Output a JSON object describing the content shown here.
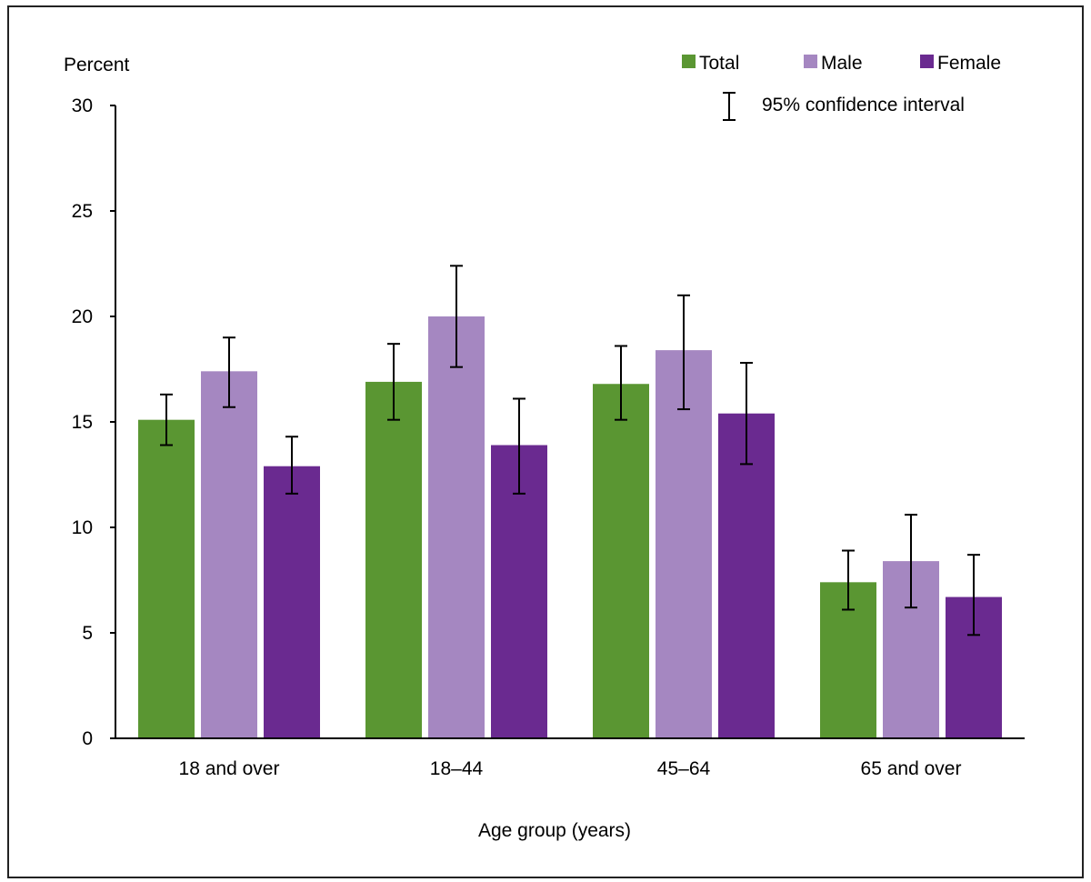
{
  "chart_data": {
    "type": "bar",
    "title": "",
    "ylabel": "Percent",
    "xlabel": "Age group (years)",
    "ylim": [
      0,
      30
    ],
    "yticks": [
      0,
      5,
      10,
      15,
      20,
      25,
      30
    ],
    "categories": [
      "18 and over",
      "18–44",
      "45–64",
      "65 and over"
    ],
    "series": [
      {
        "name": "Total",
        "color": "#5a9632",
        "values": [
          15.1,
          16.9,
          16.8,
          7.4
        ],
        "ci_low": [
          13.9,
          15.1,
          15.1,
          6.1
        ],
        "ci_high": [
          16.3,
          18.7,
          18.6,
          8.9
        ]
      },
      {
        "name": "Male",
        "color": "#a587c1",
        "values": [
          17.4,
          20.0,
          18.4,
          8.4
        ],
        "ci_low": [
          15.7,
          17.6,
          15.6,
          6.2
        ],
        "ci_high": [
          19.0,
          22.4,
          21.0,
          10.6
        ]
      },
      {
        "name": "Female",
        "color": "#6a2a90",
        "values": [
          12.9,
          13.9,
          15.4,
          6.7
        ],
        "ci_low": [
          11.6,
          11.6,
          13.0,
          4.9
        ],
        "ci_high": [
          14.3,
          16.1,
          17.8,
          8.7
        ]
      }
    ],
    "legend": {
      "position": "top-right",
      "ci_label": "95% confidence interval"
    },
    "grid": false
  }
}
